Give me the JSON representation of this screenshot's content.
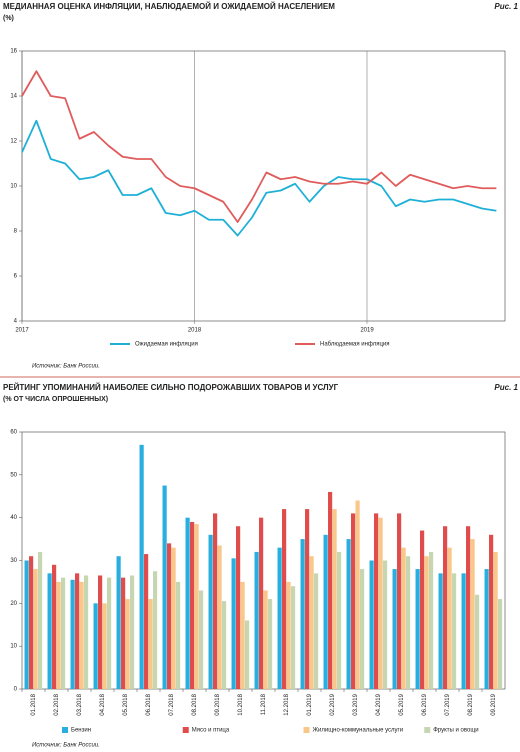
{
  "chart_data": [
    {
      "type": "line",
      "title": "МЕДИАННАЯ ОЦЕНКА ИНФЛЯЦИИ, НАБЛЮДАЕМОЙ И ОЖИДАЕМОЙ НАСЕЛЕНИЕМ",
      "subtitle": "(%)",
      "figure_label": "Рис. 1",
      "source": "Источник: Банк России.",
      "x": [
        2017,
        2017.0833,
        2017.1667,
        2017.25,
        2017.3333,
        2017.4167,
        2017.5,
        2017.5833,
        2017.6667,
        2017.75,
        2017.8333,
        2017.9167,
        2018,
        2018.0833,
        2018.1667,
        2018.25,
        2018.3333,
        2018.4167,
        2018.5,
        2018.5833,
        2018.6667,
        2018.75,
        2018.8333,
        2018.9167,
        2019,
        2019.0833,
        2019.1667,
        2019.25,
        2019.3333,
        2019.4167,
        2019.5,
        2019.5833,
        2019.6667,
        2019.75
      ],
      "xlim": [
        2017,
        2019.8
      ],
      "xticks": [
        2017,
        2018,
        2019
      ],
      "ylim": [
        4,
        16
      ],
      "yticks": [
        4,
        6,
        8,
        10,
        12,
        14,
        16
      ],
      "series": [
        {
          "name": "Ожидаемая инфляция",
          "color": "#1fb0d8",
          "values": [
            11.5,
            12.9,
            11.2,
            11.0,
            10.3,
            10.4,
            10.7,
            9.6,
            9.6,
            9.9,
            8.8,
            8.7,
            8.9,
            8.5,
            8.5,
            7.8,
            8.6,
            9.7,
            9.8,
            10.1,
            9.3,
            10.0,
            10.4,
            10.3,
            10.3,
            10.0,
            9.1,
            9.4,
            9.3,
            9.4,
            9.4,
            9.2,
            9.0,
            8.9
          ]
        },
        {
          "name": "Наблюдаемая инфляция",
          "color": "#e05c5c",
          "values": [
            14.0,
            15.1,
            14.0,
            13.9,
            12.1,
            12.4,
            11.8,
            11.3,
            11.2,
            11.2,
            10.4,
            10.0,
            9.9,
            9.6,
            9.3,
            8.4,
            9.4,
            10.6,
            10.3,
            10.4,
            10.2,
            10.1,
            10.1,
            10.2,
            10.1,
            10.6,
            10.0,
            10.5,
            10.3,
            10.1,
            9.9,
            10.0,
            9.9,
            9.9
          ]
        }
      ]
    },
    {
      "type": "bar",
      "title": "РЕЙТИНГ УПОМИНАНИЙ НАИБОЛЕЕ СИЛЬНО ПОДОРОЖАВШИХ ТОВАРОВ И УСЛУГ",
      "subtitle": "(% ОТ ЧИСЛА ОПРОШЕННЫХ)",
      "figure_label": "Рис. 1",
      "source": "Источник: Банк России.",
      "categories": [
        "01.2018",
        "02.2018",
        "03.2018",
        "04.2018",
        "05.2018",
        "06.2018",
        "07.2018",
        "08.2018",
        "09.2018",
        "10.2018",
        "11.2018",
        "12.2018",
        "01.2019",
        "02.2019",
        "03.2019",
        "04.2019",
        "05.2019",
        "06.2019",
        "07.2019",
        "08.2019",
        "09.2019"
      ],
      "ylim": [
        0,
        60
      ],
      "yticks": [
        0,
        10,
        20,
        30,
        40,
        50,
        60
      ],
      "series": [
        {
          "name": "Бензин",
          "color": "#29aee0",
          "values": [
            30,
            27,
            25.5,
            20,
            31,
            57,
            47.5,
            40,
            36,
            30.5,
            32,
            33,
            35,
            36,
            35,
            30,
            28,
            28,
            27,
            27,
            28
          ]
        },
        {
          "name": "Мясо и птица",
          "color": "#e04b4b",
          "values": [
            31,
            29,
            27,
            26.5,
            26,
            31.5,
            34,
            39,
            41,
            38,
            40,
            42,
            42,
            46,
            41,
            41,
            41,
            37,
            38,
            38,
            36
          ]
        },
        {
          "name": "Жилищно-коммунальные услуги",
          "color": "#f9c78a",
          "values": [
            28,
            25,
            25,
            20,
            21,
            21,
            33,
            38.5,
            33.5,
            25,
            23,
            25,
            31,
            42,
            44,
            40,
            33,
            31,
            33,
            35,
            32
          ]
        },
        {
          "name": "Фрукты и овощи",
          "color": "#c6d6b0",
          "values": [
            32,
            26,
            26.5,
            26,
            26.5,
            27.5,
            25,
            23,
            20.5,
            16,
            21,
            24,
            27,
            32,
            28,
            30,
            31,
            32,
            27,
            22,
            21
          ]
        }
      ]
    }
  ]
}
